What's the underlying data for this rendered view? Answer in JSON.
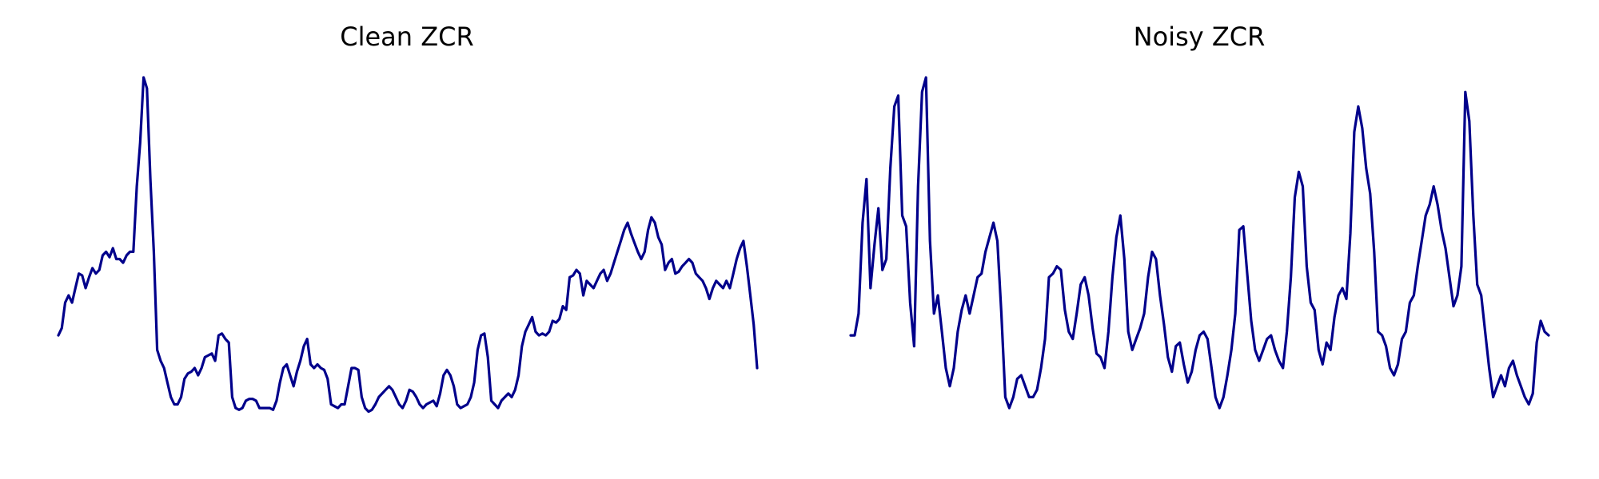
{
  "chart_data": [
    {
      "type": "line",
      "title": "Clean ZCR",
      "xlabel": "",
      "ylabel": "",
      "grid": false,
      "axes_visible": false,
      "line_color": "#00008b",
      "ylim": [
        0,
        1
      ],
      "series": [
        {
          "values": [
            0.29,
            0.31,
            0.38,
            0.4,
            0.38,
            0.42,
            0.46,
            0.455,
            0.42,
            0.45,
            0.475,
            0.46,
            0.47,
            0.51,
            0.52,
            0.505,
            0.53,
            0.5,
            0.5,
            0.49,
            0.51,
            0.52,
            0.52,
            0.7,
            0.82,
            1.0,
            0.97,
            0.72,
            0.52,
            0.25,
            0.22,
            0.2,
            0.16,
            0.12,
            0.1,
            0.1,
            0.12,
            0.17,
            0.185,
            0.19,
            0.2,
            0.18,
            0.2,
            0.23,
            0.235,
            0.24,
            0.22,
            0.29,
            0.295,
            0.28,
            0.27,
            0.12,
            0.09,
            0.085,
            0.09,
            0.11,
            0.115,
            0.115,
            0.11,
            0.09,
            0.09,
            0.09,
            0.09,
            0.085,
            0.11,
            0.16,
            0.2,
            0.21,
            0.18,
            0.15,
            0.19,
            0.22,
            0.26,
            0.28,
            0.21,
            0.2,
            0.21,
            0.2,
            0.195,
            0.17,
            0.1,
            0.095,
            0.09,
            0.1,
            0.1,
            0.15,
            0.2,
            0.2,
            0.195,
            0.12,
            0.09,
            0.08,
            0.085,
            0.1,
            0.12,
            0.13,
            0.14,
            0.15,
            0.14,
            0.12,
            0.1,
            0.09,
            0.11,
            0.14,
            0.135,
            0.12,
            0.1,
            0.09,
            0.1,
            0.105,
            0.11,
            0.095,
            0.13,
            0.18,
            0.195,
            0.18,
            0.15,
            0.1,
            0.09,
            0.095,
            0.1,
            0.12,
            0.16,
            0.25,
            0.29,
            0.295,
            0.23,
            0.11,
            0.1,
            0.09,
            0.11,
            0.12,
            0.13,
            0.12,
            0.14,
            0.18,
            0.26,
            0.3,
            0.32,
            0.34,
            0.3,
            0.29,
            0.295,
            0.29,
            0.3,
            0.33,
            0.325,
            0.335,
            0.37,
            0.36,
            0.45,
            0.455,
            0.47,
            0.46,
            0.4,
            0.44,
            0.43,
            0.42,
            0.44,
            0.46,
            0.47,
            0.44,
            0.46,
            0.49,
            0.52,
            0.55,
            0.58,
            0.6,
            0.57,
            0.545,
            0.52,
            0.5,
            0.52,
            0.58,
            0.615,
            0.6,
            0.56,
            0.54,
            0.47,
            0.49,
            0.5,
            0.46,
            0.465,
            0.48,
            0.49,
            0.5,
            0.49,
            0.46,
            0.45,
            0.44,
            0.42,
            0.39,
            0.42,
            0.44,
            0.43,
            0.42,
            0.44,
            0.42,
            0.46,
            0.5,
            0.53,
            0.55,
            0.48,
            0.4,
            0.32,
            0.2
          ]
        }
      ]
    },
    {
      "type": "line",
      "title": "Noisy ZCR",
      "xlabel": "",
      "ylabel": "",
      "grid": false,
      "axes_visible": false,
      "line_color": "#00008b",
      "ylim": [
        0,
        1
      ],
      "series": [
        {
          "values": [
            0.29,
            0.29,
            0.35,
            0.6,
            0.72,
            0.42,
            0.54,
            0.64,
            0.47,
            0.5,
            0.75,
            0.92,
            0.95,
            0.62,
            0.59,
            0.38,
            0.26,
            0.7,
            0.96,
            1.0,
            0.55,
            0.35,
            0.4,
            0.3,
            0.2,
            0.15,
            0.2,
            0.3,
            0.36,
            0.4,
            0.35,
            0.4,
            0.45,
            0.46,
            0.52,
            0.56,
            0.6,
            0.55,
            0.35,
            0.12,
            0.09,
            0.12,
            0.17,
            0.18,
            0.15,
            0.12,
            0.12,
            0.14,
            0.2,
            0.28,
            0.45,
            0.46,
            0.48,
            0.47,
            0.36,
            0.3,
            0.28,
            0.35,
            0.43,
            0.45,
            0.4,
            0.31,
            0.24,
            0.23,
            0.2,
            0.3,
            0.45,
            0.56,
            0.62,
            0.5,
            0.3,
            0.25,
            0.28,
            0.31,
            0.35,
            0.45,
            0.52,
            0.5,
            0.4,
            0.32,
            0.23,
            0.19,
            0.26,
            0.27,
            0.21,
            0.16,
            0.19,
            0.25,
            0.29,
            0.3,
            0.28,
            0.2,
            0.12,
            0.09,
            0.12,
            0.18,
            0.25,
            0.35,
            0.58,
            0.59,
            0.46,
            0.33,
            0.25,
            0.22,
            0.25,
            0.28,
            0.29,
            0.25,
            0.22,
            0.2,
            0.3,
            0.45,
            0.67,
            0.74,
            0.7,
            0.48,
            0.38,
            0.36,
            0.25,
            0.21,
            0.27,
            0.25,
            0.34,
            0.4,
            0.42,
            0.39,
            0.57,
            0.85,
            0.92,
            0.86,
            0.75,
            0.68,
            0.52,
            0.3,
            0.29,
            0.26,
            0.2,
            0.18,
            0.21,
            0.28,
            0.3,
            0.38,
            0.4,
            0.48,
            0.55,
            0.62,
            0.65,
            0.7,
            0.65,
            0.58,
            0.53,
            0.45,
            0.37,
            0.4,
            0.48,
            0.96,
            0.88,
            0.62,
            0.43,
            0.4,
            0.3,
            0.2,
            0.12,
            0.15,
            0.18,
            0.15,
            0.2,
            0.22,
            0.18,
            0.15,
            0.12,
            0.1,
            0.13,
            0.27,
            0.33,
            0.3,
            0.29
          ]
        }
      ]
    }
  ]
}
